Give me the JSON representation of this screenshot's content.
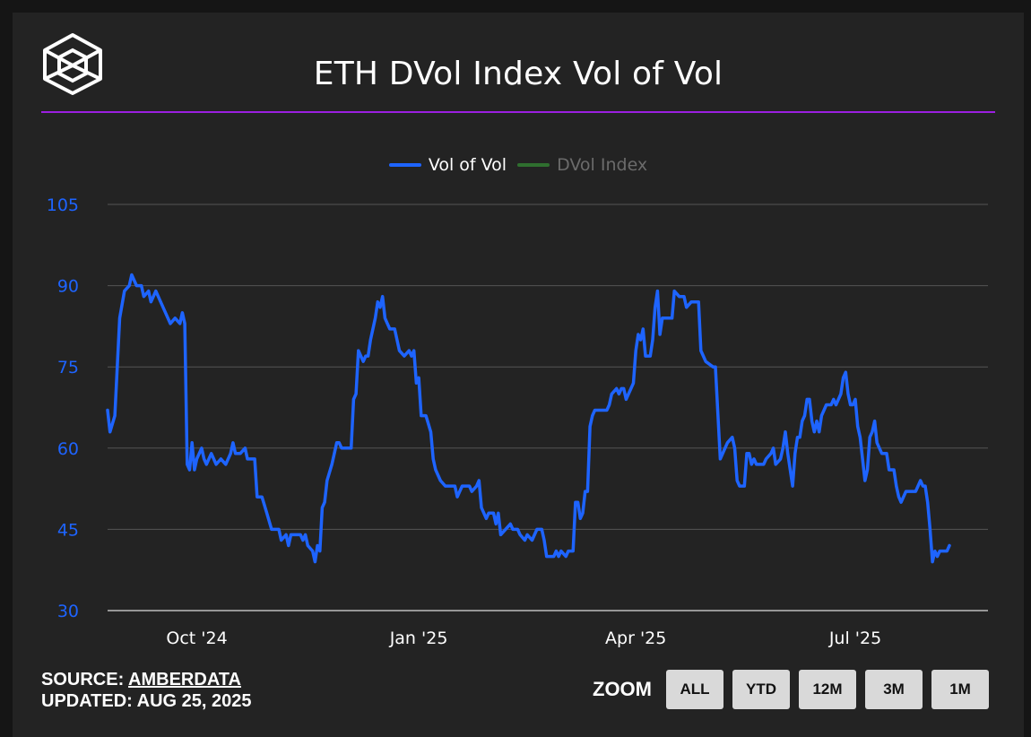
{
  "title": "ETH DVol Index Vol of Vol",
  "legend": [
    {
      "label": "Vol of Vol",
      "color": "#1e64ff",
      "active": true
    },
    {
      "label": "DVol Index",
      "color": "#2f6f2f",
      "active": false
    }
  ],
  "footer": {
    "source_prefix": "SOURCE: ",
    "source_link": "AMBERDATA",
    "updated": "UPDATED: AUG 25, 2025"
  },
  "zoom": {
    "label": "ZOOM",
    "buttons": [
      "ALL",
      "YTD",
      "12M",
      "3M",
      "1M"
    ]
  },
  "colors": {
    "accent_rule": "#9b1fe0",
    "series": "#1e64ff",
    "axis_labels": "#1e64ff",
    "grid": "#555555"
  },
  "chart_data": {
    "type": "line",
    "title": "ETH DVol Index Vol of Vol",
    "ylim": [
      30,
      105
    ],
    "yticks": [
      30,
      45,
      60,
      75,
      90,
      105
    ],
    "xlim": [
      "2024-08-25",
      "2025-08-25"
    ],
    "xticks": [
      {
        "label": "Oct '24",
        "date": "2024-10-01"
      },
      {
        "label": "Jan '25",
        "date": "2025-01-01"
      },
      {
        "label": "Apr '25",
        "date": "2025-04-01"
      },
      {
        "label": "Jul '25",
        "date": "2025-07-01"
      }
    ],
    "grid": true,
    "legend_position": "top-center",
    "series": [
      {
        "name": "Vol of Vol",
        "points": [
          [
            "2024-08-25",
            67
          ],
          [
            "2024-08-26",
            63
          ],
          [
            "2024-08-28",
            66
          ],
          [
            "2024-08-30",
            84
          ],
          [
            "2024-09-01",
            89
          ],
          [
            "2024-09-03",
            90
          ],
          [
            "2024-09-04",
            92
          ],
          [
            "2024-09-06",
            90
          ],
          [
            "2024-09-08",
            90
          ],
          [
            "2024-09-09",
            88
          ],
          [
            "2024-09-11",
            89
          ],
          [
            "2024-09-12",
            87
          ],
          [
            "2024-09-14",
            89
          ],
          [
            "2024-09-16",
            87
          ],
          [
            "2024-09-18",
            85
          ],
          [
            "2024-09-20",
            83
          ],
          [
            "2024-09-22",
            84
          ],
          [
            "2024-09-24",
            83
          ],
          [
            "2024-09-25",
            85
          ],
          [
            "2024-09-26",
            83
          ],
          [
            "2024-09-27",
            57
          ],
          [
            "2024-09-28",
            56
          ],
          [
            "2024-09-29",
            61
          ],
          [
            "2024-09-30",
            56
          ],
          [
            "2024-10-01",
            58
          ],
          [
            "2024-10-03",
            60
          ],
          [
            "2024-10-04",
            58
          ],
          [
            "2024-10-05",
            57
          ],
          [
            "2024-10-07",
            59
          ],
          [
            "2024-10-09",
            57
          ],
          [
            "2024-10-11",
            58
          ],
          [
            "2024-10-13",
            57
          ],
          [
            "2024-10-15",
            59
          ],
          [
            "2024-10-16",
            61
          ],
          [
            "2024-10-17",
            59
          ],
          [
            "2024-10-19",
            59
          ],
          [
            "2024-10-21",
            60
          ],
          [
            "2024-10-22",
            58
          ],
          [
            "2024-10-25",
            58
          ],
          [
            "2024-10-26",
            51
          ],
          [
            "2024-10-28",
            51
          ],
          [
            "2024-10-30",
            48
          ],
          [
            "2024-11-01",
            45
          ],
          [
            "2024-11-04",
            45
          ],
          [
            "2024-11-05",
            43
          ],
          [
            "2024-11-07",
            44
          ],
          [
            "2024-11-08",
            42
          ],
          [
            "2024-11-09",
            44
          ],
          [
            "2024-11-13",
            44
          ],
          [
            "2024-11-14",
            43
          ],
          [
            "2024-11-15",
            44
          ],
          [
            "2024-11-16",
            42
          ],
          [
            "2024-11-18",
            41
          ],
          [
            "2024-11-19",
            39
          ],
          [
            "2024-11-20",
            42
          ],
          [
            "2024-11-21",
            41
          ],
          [
            "2024-11-22",
            49
          ],
          [
            "2024-11-23",
            50
          ],
          [
            "2024-11-24",
            54
          ],
          [
            "2024-11-26",
            57
          ],
          [
            "2024-11-28",
            61
          ],
          [
            "2024-11-29",
            61
          ],
          [
            "2024-11-30",
            60
          ],
          [
            "2024-12-04",
            60
          ],
          [
            "2024-12-05",
            69
          ],
          [
            "2024-12-06",
            70
          ],
          [
            "2024-12-07",
            78
          ],
          [
            "2024-12-08",
            77
          ],
          [
            "2024-12-09",
            76
          ],
          [
            "2024-12-10",
            77
          ],
          [
            "2024-12-11",
            77
          ],
          [
            "2024-12-12",
            80
          ],
          [
            "2024-12-14",
            84
          ],
          [
            "2024-12-15",
            87
          ],
          [
            "2024-12-16",
            86
          ],
          [
            "2024-12-17",
            88
          ],
          [
            "2024-12-18",
            84
          ],
          [
            "2024-12-19",
            83
          ],
          [
            "2024-12-20",
            82
          ],
          [
            "2024-12-22",
            82
          ],
          [
            "2024-12-24",
            78
          ],
          [
            "2024-12-26",
            77
          ],
          [
            "2024-12-28",
            78
          ],
          [
            "2024-12-29",
            77
          ],
          [
            "2024-12-30",
            78
          ],
          [
            "2024-12-31",
            72
          ],
          [
            "2025-01-01",
            73
          ],
          [
            "2025-01-02",
            66
          ],
          [
            "2025-01-04",
            66
          ],
          [
            "2025-01-06",
            63
          ],
          [
            "2025-01-07",
            58
          ],
          [
            "2025-01-08",
            56
          ],
          [
            "2025-01-10",
            54
          ],
          [
            "2025-01-12",
            53
          ],
          [
            "2025-01-16",
            53
          ],
          [
            "2025-01-17",
            51
          ],
          [
            "2025-01-18",
            52
          ],
          [
            "2025-01-19",
            53
          ],
          [
            "2025-01-22",
            53
          ],
          [
            "2025-01-23",
            52
          ],
          [
            "2025-01-25",
            53
          ],
          [
            "2025-01-26",
            54
          ],
          [
            "2025-01-27",
            49
          ],
          [
            "2025-01-29",
            47
          ],
          [
            "2025-01-30",
            48
          ],
          [
            "2025-02-01",
            48
          ],
          [
            "2025-02-02",
            46
          ],
          [
            "2025-02-03",
            48
          ],
          [
            "2025-02-04",
            44
          ],
          [
            "2025-02-06",
            45
          ],
          [
            "2025-02-08",
            46
          ],
          [
            "2025-02-09",
            45
          ],
          [
            "2025-02-11",
            45
          ],
          [
            "2025-02-12",
            44
          ],
          [
            "2025-02-14",
            43
          ],
          [
            "2025-02-15",
            44
          ],
          [
            "2025-02-17",
            43
          ],
          [
            "2025-02-19",
            45
          ],
          [
            "2025-02-21",
            45
          ],
          [
            "2025-02-22",
            43
          ],
          [
            "2025-02-23",
            40
          ],
          [
            "2025-02-26",
            40
          ],
          [
            "2025-02-27",
            41
          ],
          [
            "2025-02-28",
            40
          ],
          [
            "2025-03-01",
            41
          ],
          [
            "2025-03-03",
            40
          ],
          [
            "2025-03-04",
            41
          ],
          [
            "2025-03-06",
            41
          ],
          [
            "2025-03-07",
            50
          ],
          [
            "2025-03-08",
            50
          ],
          [
            "2025-03-09",
            47
          ],
          [
            "2025-03-10",
            48
          ],
          [
            "2025-03-11",
            52
          ],
          [
            "2025-03-12",
            52
          ],
          [
            "2025-03-13",
            64
          ],
          [
            "2025-03-14",
            66
          ],
          [
            "2025-03-15",
            67
          ],
          [
            "2025-03-20",
            67
          ],
          [
            "2025-03-21",
            68
          ],
          [
            "2025-03-22",
            70
          ],
          [
            "2025-03-24",
            71
          ],
          [
            "2025-03-25",
            70
          ],
          [
            "2025-03-26",
            71
          ],
          [
            "2025-03-27",
            71
          ],
          [
            "2025-03-28",
            69
          ],
          [
            "2025-03-30",
            71
          ],
          [
            "2025-03-31",
            72
          ],
          [
            "2025-04-01",
            78
          ],
          [
            "2025-04-02",
            81
          ],
          [
            "2025-04-03",
            80
          ],
          [
            "2025-04-04",
            82
          ],
          [
            "2025-04-05",
            77
          ],
          [
            "2025-04-07",
            77
          ],
          [
            "2025-04-08",
            80
          ],
          [
            "2025-04-09",
            86
          ],
          [
            "2025-04-10",
            89
          ],
          [
            "2025-04-11",
            81
          ],
          [
            "2025-04-12",
            84
          ],
          [
            "2025-04-16",
            84
          ],
          [
            "2025-04-17",
            89
          ],
          [
            "2025-04-19",
            88
          ],
          [
            "2025-04-21",
            88
          ],
          [
            "2025-04-22",
            86
          ],
          [
            "2025-04-24",
            87
          ],
          [
            "2025-04-27",
            87
          ],
          [
            "2025-04-28",
            78
          ],
          [
            "2025-04-29",
            77
          ],
          [
            "2025-04-30",
            76
          ],
          [
            "2025-05-03",
            75
          ],
          [
            "2025-05-04",
            75
          ],
          [
            "2025-05-06",
            58
          ],
          [
            "2025-05-07",
            59
          ],
          [
            "2025-05-09",
            61
          ],
          [
            "2025-05-11",
            62
          ],
          [
            "2025-05-12",
            60
          ],
          [
            "2025-05-13",
            54
          ],
          [
            "2025-05-14",
            53
          ],
          [
            "2025-05-16",
            53
          ],
          [
            "2025-05-17",
            59
          ],
          [
            "2025-05-18",
            59
          ],
          [
            "2025-05-19",
            57
          ],
          [
            "2025-05-20",
            58
          ],
          [
            "2025-05-21",
            57
          ],
          [
            "2025-05-24",
            57
          ],
          [
            "2025-05-25",
            58
          ],
          [
            "2025-05-27",
            59
          ],
          [
            "2025-05-28",
            60
          ],
          [
            "2025-05-29",
            57
          ],
          [
            "2025-05-31",
            58
          ],
          [
            "2025-06-01",
            60
          ],
          [
            "2025-06-02",
            63
          ],
          [
            "2025-06-03",
            59
          ],
          [
            "2025-06-05",
            53
          ],
          [
            "2025-06-06",
            59
          ],
          [
            "2025-06-07",
            62
          ],
          [
            "2025-06-08",
            62
          ],
          [
            "2025-06-09",
            65
          ],
          [
            "2025-06-10",
            66
          ],
          [
            "2025-06-11",
            69
          ],
          [
            "2025-06-12",
            69
          ],
          [
            "2025-06-13",
            65
          ],
          [
            "2025-06-14",
            63
          ],
          [
            "2025-06-15",
            65
          ],
          [
            "2025-06-16",
            63
          ],
          [
            "2025-06-17",
            66
          ],
          [
            "2025-06-18",
            67
          ],
          [
            "2025-06-19",
            68
          ],
          [
            "2025-06-21",
            68
          ],
          [
            "2025-06-22",
            69
          ],
          [
            "2025-06-23",
            68
          ],
          [
            "2025-06-25",
            70
          ],
          [
            "2025-06-26",
            73
          ],
          [
            "2025-06-27",
            74
          ],
          [
            "2025-06-28",
            70
          ],
          [
            "2025-06-29",
            68
          ],
          [
            "2025-06-30",
            68
          ],
          [
            "2025-07-01",
            69
          ],
          [
            "2025-07-02",
            64
          ],
          [
            "2025-07-03",
            62
          ],
          [
            "2025-07-04",
            58
          ],
          [
            "2025-07-05",
            54
          ],
          [
            "2025-07-06",
            56
          ],
          [
            "2025-07-07",
            62
          ],
          [
            "2025-07-08",
            63
          ],
          [
            "2025-07-09",
            65
          ],
          [
            "2025-07-10",
            61
          ],
          [
            "2025-07-11",
            60
          ],
          [
            "2025-07-12",
            59
          ],
          [
            "2025-07-14",
            59
          ],
          [
            "2025-07-15",
            56
          ],
          [
            "2025-07-17",
            56
          ],
          [
            "2025-07-18",
            53
          ],
          [
            "2025-07-19",
            51
          ],
          [
            "2025-07-20",
            50
          ],
          [
            "2025-07-22",
            52
          ],
          [
            "2025-07-26",
            52
          ],
          [
            "2025-07-27",
            53
          ],
          [
            "2025-07-28",
            54
          ],
          [
            "2025-07-29",
            53
          ],
          [
            "2025-07-30",
            53
          ],
          [
            "2025-07-31",
            50
          ],
          [
            "2025-08-01",
            45
          ],
          [
            "2025-08-02",
            39
          ],
          [
            "2025-08-03",
            41
          ],
          [
            "2025-08-04",
            40
          ],
          [
            "2025-08-05",
            41
          ],
          [
            "2025-08-08",
            41
          ],
          [
            "2025-08-09",
            42
          ]
        ]
      },
      {
        "name": "DVol Index",
        "visible": false,
        "points": []
      }
    ]
  }
}
